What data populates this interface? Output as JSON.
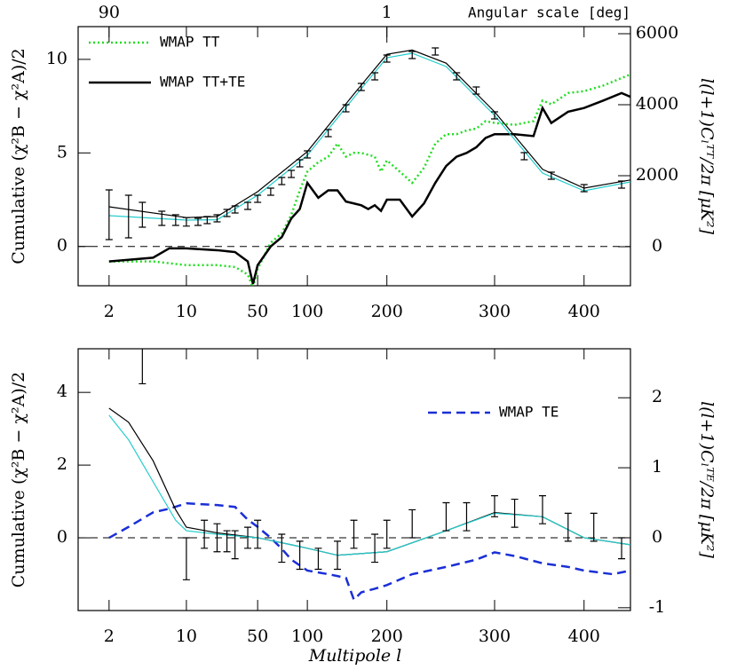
{
  "chart_data": [
    {
      "type": "line",
      "legend": "upper left",
      "hline": 0,
      "x2label": "Angular scale [deg]",
      "x2ticks": [
        {
          "value": 2,
          "label": "90"
        },
        {
          "value": 200,
          "label": "1"
        }
      ],
      "xlim": [
        1,
        450
      ],
      "xticks": [
        2,
        10,
        50,
        100,
        200,
        300,
        400
      ],
      "ylim": [
        -2.1,
        11.75
      ],
      "yticks": [
        0,
        5,
        10
      ],
      "y2lim": [
        -1100,
        6200
      ],
      "y2ticks": [
        0,
        2000,
        4000,
        6000
      ],
      "ylabel": "Cumulative (χ²B − χ²A)/2",
      "y2label": "l(l+1)Cₗᵀᵀ/2π [μK²]",
      "series": [
        {
          "name": "WMAP TT",
          "color": "#22dd22",
          "dash": "dotted",
          "x": [
            2,
            5,
            10,
            20,
            30,
            40,
            45,
            50,
            60,
            70,
            80,
            90,
            100,
            110,
            120,
            130,
            140,
            150,
            160,
            170,
            180,
            190,
            200,
            210,
            220,
            230,
            240,
            250,
            260,
            270,
            280,
            290,
            300,
            320,
            340,
            350,
            360,
            380,
            400,
            420,
            440,
            450
          ],
          "values": [
            -0.8,
            -0.8,
            -1.0,
            -1.0,
            -1.1,
            -1.5,
            -2.2,
            -1.2,
            0.2,
            0.7,
            1.7,
            3.0,
            4.0,
            4.5,
            4.8,
            5.5,
            4.8,
            5.0,
            5.0,
            4.9,
            4.8,
            4.0,
            4.6,
            4.0,
            3.4,
            4.2,
            5.5,
            6.0,
            6.0,
            6.2,
            6.3,
            6.7,
            6.6,
            6.5,
            6.7,
            7.8,
            7.6,
            8.2,
            8.3,
            8.6,
            9.0,
            9.2
          ]
        },
        {
          "name": "WMAP TT+TE",
          "color": "#000000",
          "dash": "solid",
          "x": [
            2,
            5,
            7,
            10,
            20,
            30,
            40,
            45,
            50,
            60,
            70,
            80,
            90,
            100,
            110,
            120,
            130,
            140,
            150,
            160,
            170,
            180,
            190,
            200,
            210,
            220,
            230,
            240,
            250,
            260,
            270,
            280,
            290,
            300,
            320,
            340,
            350,
            360,
            380,
            400,
            420,
            440,
            450
          ],
          "values": [
            -0.8,
            -0.6,
            -0.1,
            -0.1,
            -0.2,
            -0.3,
            -0.8,
            -2.0,
            -1.0,
            0.0,
            0.5,
            1.5,
            2.0,
            3.4,
            2.6,
            3.0,
            3.0,
            2.4,
            2.3,
            2.2,
            2.0,
            2.2,
            1.9,
            2.5,
            2.5,
            1.6,
            2.3,
            3.4,
            4.3,
            4.8,
            5.0,
            5.3,
            5.8,
            6.0,
            6.0,
            5.9,
            7.4,
            6.6,
            7.2,
            7.4,
            7.8,
            8.2,
            8.0
          ]
        },
        {
          "color": "#000000",
          "dash": "thin",
          "axis": "y2",
          "x": [
            2,
            10,
            20,
            50,
            100,
            150,
            200,
            220,
            250,
            300,
            350,
            400,
            450
          ],
          "values": [
            1125,
            820,
            850,
            1550,
            2680,
            4300,
            5420,
            5540,
            5170,
            3800,
            2180,
            1650,
            1880
          ]
        },
        {
          "color": "#22cccc",
          "dash": "thin",
          "axis": "y2",
          "x": [
            2,
            10,
            20,
            50,
            100,
            150,
            200,
            220,
            250,
            300,
            350,
            400,
            450
          ],
          "values": [
            875,
            750,
            760,
            1450,
            2575,
            4200,
            5325,
            5450,
            5075,
            3700,
            2075,
            1575,
            1825
          ]
        },
        {
          "kind": "errorbar",
          "color": "#000000",
          "axis": "y2",
          "x": [
            2,
            3,
            4,
            6,
            8,
            10,
            13,
            16,
            20,
            25,
            30,
            40,
            50,
            60,
            70,
            80,
            90,
            100,
            120,
            140,
            160,
            180,
            200,
            220,
            240,
            260,
            280,
            300,
            330,
            360,
            400,
            440
          ],
          "values": [
            900,
            850,
            900,
            800,
            750,
            700,
            700,
            750,
            800,
            950,
            1050,
            1150,
            1350,
            1550,
            1850,
            2050,
            2350,
            2600,
            3200,
            3900,
            4500,
            4800,
            5300,
            5400,
            5500,
            4800,
            4400,
            3700,
            2550,
            2000,
            1650,
            1750
          ],
          "errors": [
            700,
            600,
            350,
            200,
            150,
            120,
            100,
            100,
            100,
            100,
            100,
            100,
            100,
            100,
            100,
            100,
            100,
            100,
            100,
            100,
            100,
            100,
            100,
            100,
            100,
            100,
            100,
            100,
            100,
            100,
            100,
            100
          ]
        }
      ]
    },
    {
      "type": "line",
      "legend": "upper right",
      "hline": 0,
      "xlabel": "Multipole l",
      "xlim": [
        1,
        450
      ],
      "xticks": [
        2,
        10,
        50,
        100,
        200,
        300,
        400
      ],
      "ylim": [
        -2.0,
        5.2
      ],
      "yticks": [
        0,
        2,
        4
      ],
      "y2lim": [
        -1.04,
        2.7
      ],
      "y2ticks": [
        -1,
        0,
        1,
        2
      ],
      "ylabel": "Cumulative (χ²B − χ²A)/2",
      "y2label": "l(l+1)Cₗᵀᴱ/2π [μK²]",
      "series": [
        {
          "name": "WMAP TE",
          "color": "#1a2fd6",
          "dash": "dashed",
          "x": [
            2,
            3,
            5,
            7,
            10,
            20,
            30,
            40,
            50,
            60,
            70,
            80,
            100,
            120,
            140,
            150,
            160,
            180,
            200,
            220,
            250,
            280,
            300,
            320,
            350,
            380,
            400,
            430,
            450
          ],
          "values": [
            0,
            0.3,
            0.7,
            0.8,
            0.95,
            0.9,
            0.85,
            0.5,
            0.3,
            0.0,
            -0.3,
            -0.6,
            -0.9,
            -1.0,
            -1.1,
            -1.7,
            -1.5,
            -1.4,
            -1.3,
            -1.0,
            -0.8,
            -0.6,
            -0.4,
            -0.5,
            -0.7,
            -0.8,
            -0.9,
            -1.0,
            -0.9
          ]
        },
        {
          "color": "#000000",
          "dash": "thin",
          "axis": "y2",
          "x": [
            2,
            3,
            5,
            8,
            10,
            20,
            50,
            80,
            100,
            130,
            200,
            250,
            300,
            350,
            400,
            450
          ],
          "values": [
            1.85,
            1.65,
            1.1,
            0.4,
            0.15,
            0.07,
            0.0,
            -0.1,
            -0.15,
            -0.25,
            -0.2,
            0.1,
            0.36,
            0.3,
            0.0,
            -0.1
          ]
        },
        {
          "color": "#22cccc",
          "dash": "thin",
          "axis": "y2",
          "x": [
            2,
            3,
            5,
            8,
            10,
            20,
            50,
            80,
            100,
            130,
            200,
            250,
            300,
            350,
            400,
            450
          ],
          "values": [
            1.75,
            1.4,
            0.8,
            0.25,
            0.1,
            0.05,
            0.0,
            -0.1,
            -0.15,
            -0.25,
            -0.2,
            0.1,
            0.35,
            0.3,
            0.0,
            -0.1
          ]
        },
        {
          "kind": "errorbar",
          "color": "#000000",
          "axis": "y2",
          "x": [
            4,
            10,
            15,
            20,
            25,
            30,
            40,
            50,
            70,
            90,
            110,
            130,
            150,
            180,
            200,
            220,
            250,
            270,
            300,
            320,
            350,
            380,
            410,
            440
          ],
          "values": [
            2.6,
            -0.3,
            0.05,
            0.0,
            -0.05,
            -0.1,
            0.0,
            0.05,
            -0.15,
            -0.25,
            -0.3,
            -0.25,
            0.05,
            -0.15,
            0.05,
            0.2,
            0.3,
            0.3,
            0.45,
            0.35,
            0.4,
            0.15,
            0.15,
            -0.15
          ],
          "errors": [
            0.4,
            0.3,
            0.2,
            0.2,
            0.15,
            0.2,
            0.15,
            0.2,
            0.2,
            0.2,
            0.15,
            0.2,
            0.2,
            0.2,
            0.2,
            0.2,
            0.2,
            0.2,
            0.15,
            0.2,
            0.2,
            0.2,
            0.2,
            0.15
          ]
        }
      ]
    }
  ]
}
